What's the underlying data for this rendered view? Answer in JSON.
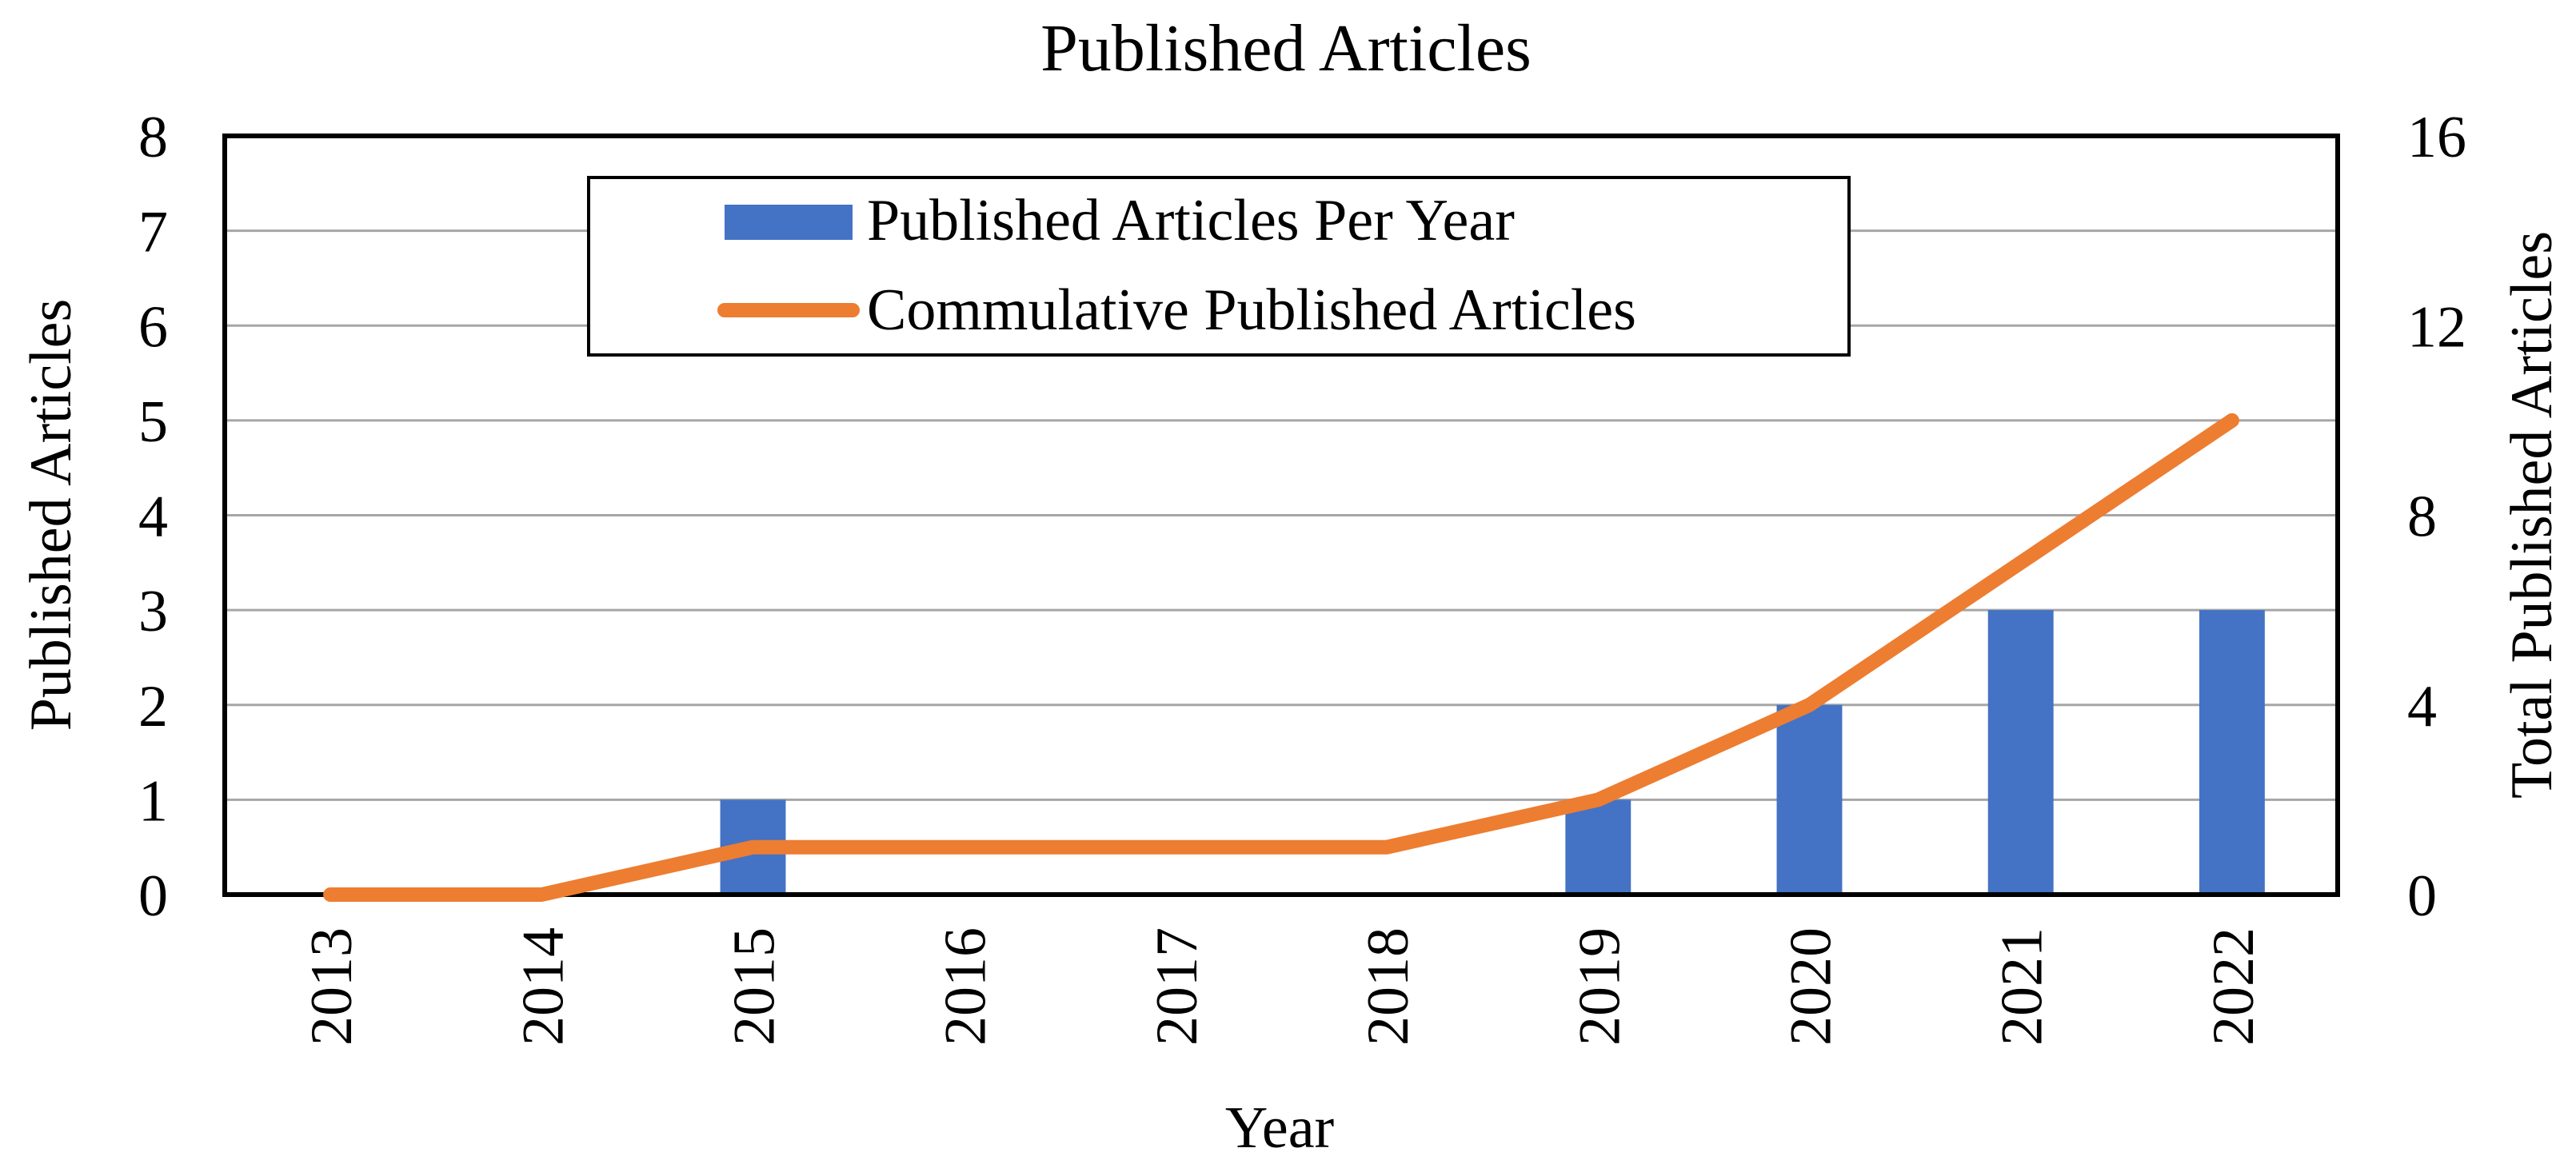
{
  "chart_data": {
    "type": "bar",
    "title": "Published Articles",
    "xlabel": "Year",
    "ylabel": "Published Articles",
    "y2label": "Total Published Articles",
    "categories": [
      "2013",
      "2014",
      "2015",
      "2016",
      "2017",
      "2018",
      "2019",
      "2020",
      "2021",
      "2022"
    ],
    "ylim": [
      0,
      8
    ],
    "y2lim": [
      0,
      16
    ],
    "yticks": [
      "0",
      "1",
      "2",
      "3",
      "4",
      "5",
      "6",
      "7",
      "8"
    ],
    "y2ticks": [
      "0",
      "4",
      "8",
      "12",
      "16"
    ],
    "grid": true,
    "legend_position": "top-center",
    "series": [
      {
        "name": "Published Articles Per Year",
        "type": "bar",
        "axis": "left",
        "color": "#4472C4",
        "values": [
          0,
          0,
          1,
          0,
          0,
          0,
          1,
          2,
          3,
          3
        ]
      },
      {
        "name": "Commulative Published Articles",
        "type": "line",
        "axis": "right",
        "color": "#ED7D31",
        "values": [
          0,
          0,
          1,
          1,
          1,
          1,
          2,
          4,
          7,
          10
        ]
      }
    ]
  }
}
